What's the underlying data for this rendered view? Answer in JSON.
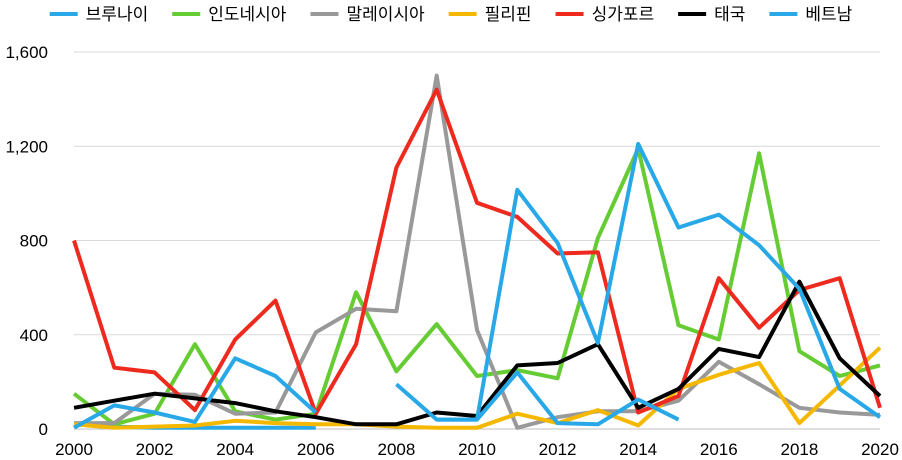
{
  "chart_data": {
    "type": "line",
    "title": "",
    "xlabel": "",
    "ylabel": "",
    "x": [
      2000,
      2001,
      2002,
      2003,
      2004,
      2005,
      2006,
      2007,
      2008,
      2009,
      2010,
      2011,
      2012,
      2013,
      2014,
      2015,
      2016,
      2017,
      2018,
      2019,
      2020
    ],
    "xlim": [
      2000,
      2020
    ],
    "ylim": [
      0,
      1600
    ],
    "yticks": [
      0,
      400,
      800,
      1200,
      1600
    ],
    "ytick_labels": [
      "0",
      "400",
      "800",
      "1,200",
      "1,600"
    ],
    "xticks": [
      2000,
      2002,
      2004,
      2006,
      2008,
      2010,
      2012,
      2014,
      2016,
      2018,
      2020
    ],
    "xtick_labels": [
      "2000",
      "2002",
      "2004",
      "2006",
      "2008",
      "2010",
      "2012",
      "2014",
      "2016",
      "2018",
      "2020"
    ],
    "grid": true,
    "legend_position": "top",
    "series": [
      {
        "name": "브루나이",
        "color": "#29a8e8",
        "values": [
          20,
          10,
          5,
          5,
          5,
          5,
          5,
          null,
          null,
          null,
          null,
          null,
          null,
          null,
          null,
          null,
          null,
          null,
          null,
          null,
          null
        ]
      },
      {
        "name": "인도네시아",
        "color": "#66cc33",
        "values": [
          150,
          20,
          65,
          360,
          75,
          40,
          65,
          580,
          245,
          445,
          225,
          250,
          215,
          810,
          1190,
          440,
          380,
          1170,
          330,
          225,
          270
        ]
      },
      {
        "name": "말레이시아",
        "color": "#999999",
        "values": [
          25,
          25,
          150,
          145,
          65,
          70,
          410,
          510,
          500,
          1500,
          420,
          5,
          50,
          75,
          75,
          120,
          285,
          190,
          90,
          70,
          60
        ]
      },
      {
        "name": "필리핀",
        "color": "#f5b800",
        "values": [
          20,
          5,
          10,
          15,
          35,
          25,
          20,
          20,
          10,
          5,
          5,
          65,
          25,
          80,
          15,
          170,
          230,
          280,
          25,
          185,
          345
        ]
      },
      {
        "name": "싱가포르",
        "color": "#ee2a1f",
        "values": [
          800,
          260,
          240,
          80,
          380,
          545,
          65,
          360,
          1110,
          1440,
          960,
          900,
          745,
          750,
          70,
          140,
          640,
          430,
          590,
          640,
          90
        ]
      },
      {
        "name": "태국",
        "color": "#000000",
        "values": [
          90,
          120,
          150,
          130,
          110,
          75,
          50,
          20,
          20,
          70,
          55,
          270,
          280,
          360,
          90,
          170,
          340,
          305,
          625,
          300,
          140
        ]
      },
      {
        "name": "베트남",
        "color": "#29a8e8",
        "values": [
          5,
          100,
          70,
          30,
          300,
          225,
          70,
          null,
          190,
          40,
          40,
          1015,
          790,
          365,
          1210,
          855,
          910,
          780,
          595,
          170,
          50
        ]
      }
    ],
    "extra_segments": [
      {
        "series": "베트남",
        "x": [
          2009,
          2010,
          2011,
          2012,
          2013,
          2014,
          2015
        ],
        "values": [
          40,
          40,
          240,
          25,
          20,
          125,
          40
        ]
      }
    ]
  }
}
